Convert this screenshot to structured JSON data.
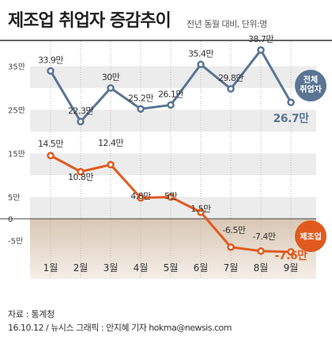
{
  "header": {
    "title": "제조업 취업자 증감추이",
    "subtitle": "전년 동월 대비, 단위:명"
  },
  "chart_data": {
    "type": "line",
    "title": "제조업 취업자 증감추이",
    "subtitle": "전년 동월 대비, 단위:명",
    "categories": [
      "1월",
      "2월",
      "3월",
      "4월",
      "5월",
      "6월",
      "7월",
      "8월",
      "9월"
    ],
    "yticks": [
      "35만",
      "25만",
      "15만",
      "5만",
      "0",
      "-5만"
    ],
    "series": [
      {
        "name": "전체 취업자",
        "values": [
          33.9,
          22.3,
          30,
          25.2,
          26.1,
          35.4,
          29.8,
          38.7,
          26.7
        ],
        "labels": [
          "33.9만",
          "22.3만",
          "30만",
          "25.2만",
          "26.1만",
          "35.4만",
          "29.8만",
          "38.7만",
          "26.7만"
        ],
        "color": "#5a7594"
      },
      {
        "name": "제조업",
        "values": [
          14.5,
          10.8,
          12.4,
          4.8,
          5,
          1.5,
          -6.5,
          -7.4,
          -7.6
        ],
        "labels": [
          "14.5만",
          "10.8만",
          "12.4만",
          "4.8만",
          "5만",
          "1.5만",
          "-6.5만",
          "-7.4만",
          "-7.6만"
        ],
        "color": "#e05a1e"
      }
    ],
    "grid": true
  },
  "footer": {
    "source": "자료 : 통계청",
    "credit": "16.10.12 / 뉴시스 그래픽 : 안지혜 기자 hokma@newsis.com"
  }
}
